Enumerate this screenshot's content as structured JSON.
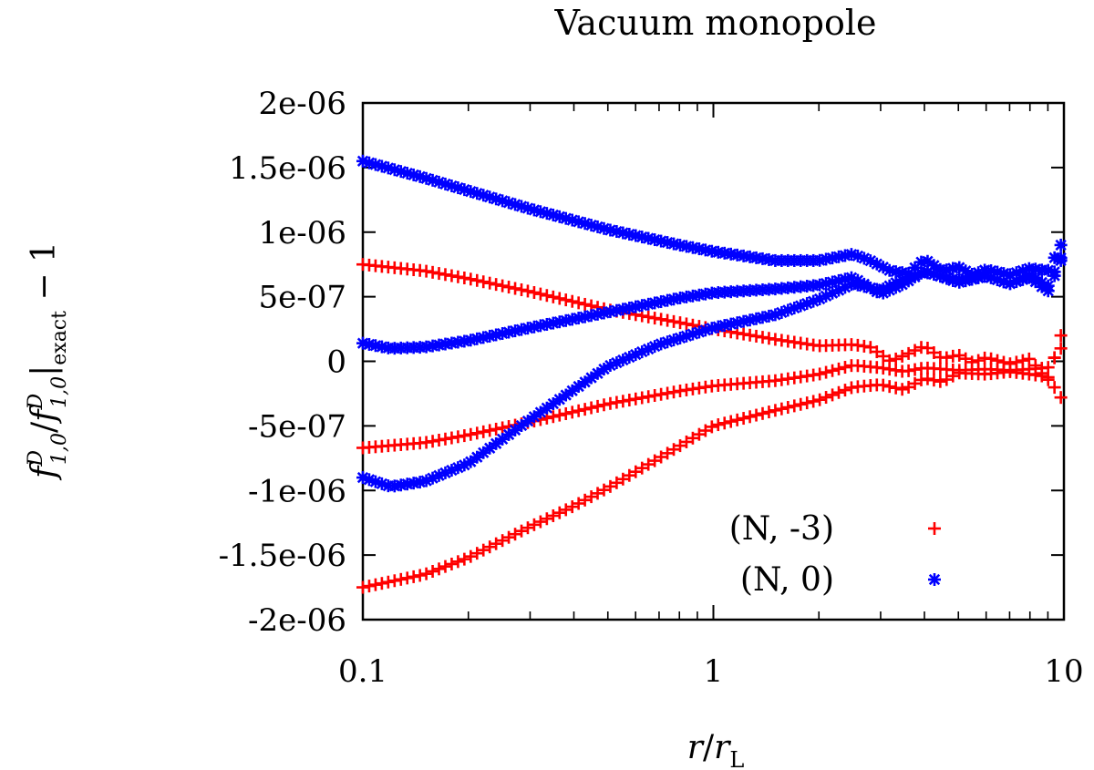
{
  "chart_data": {
    "type": "scatter",
    "title": "Vacuum monopole",
    "xlabel": "r/r_L",
    "ylabel": "f^D_{1,0}/f^D_{1,0}|_exact − 1",
    "xscale": "log",
    "xlim": [
      0.1,
      10
    ],
    "ylim": [
      -2e-06,
      2e-06
    ],
    "xticks": [
      {
        "value": 0.1,
        "label": "0.1"
      },
      {
        "value": 1,
        "label": "1"
      },
      {
        "value": 10,
        "label": "10"
      }
    ],
    "yticks": [
      {
        "value": 2e-06,
        "label": "2e-06"
      },
      {
        "value": 1.5e-06,
        "label": "1.5e-06"
      },
      {
        "value": 1e-06,
        "label": "1e-06"
      },
      {
        "value": 5e-07,
        "label": "5e-07"
      },
      {
        "value": 0,
        "label": "0"
      },
      {
        "value": -5e-07,
        "label": "-5e-07"
      },
      {
        "value": -1e-06,
        "label": "-1e-06"
      },
      {
        "value": -1.5e-06,
        "label": "-1.5e-06"
      },
      {
        "value": -2e-06,
        "label": "-2e-06"
      }
    ],
    "legend_position": "bottom-right",
    "series": [
      {
        "name": "(N, -3)",
        "marker": "plus",
        "color": "#ff0000",
        "curves": [
          {
            "x": [
              0.1,
              0.15,
              0.2,
              0.3,
              0.5,
              0.8,
              1,
              1.5,
              2,
              2.5,
              2.8,
              3.2,
              3.6,
              4,
              4.5,
              5,
              5.5,
              6,
              7,
              8,
              9,
              9.8
            ],
            "y": [
              7.5e-07,
              7e-07,
              6.4e-07,
              5.4e-07,
              4e-07,
              3e-07,
              2.5e-07,
              1.7e-07,
              1.2e-07,
              1.3e-07,
              1.1e-07,
              0,
              6e-08,
              1.2e-07,
              2e-08,
              5e-08,
              -1e-08,
              3e-08,
              -2e-08,
              2e-08,
              -1.5e-07,
              2e-07
            ]
          },
          {
            "x": [
              0.1,
              0.15,
              0.2,
              0.3,
              0.5,
              0.8,
              1,
              1.5,
              2,
              2.5,
              3,
              3.5,
              4,
              5,
              6,
              7,
              8,
              9,
              9.8
            ],
            "y": [
              -6.7e-07,
              -6.3e-07,
              -5.7e-07,
              -4.7e-07,
              -3.3e-07,
              -2.3e-07,
              -1.9e-07,
              -1.5e-07,
              -1e-07,
              -3e-08,
              -5e-08,
              -8e-08,
              -5e-08,
              -7e-08,
              -6e-08,
              -7e-08,
              -6e-08,
              -5e-08,
              1e-07
            ]
          },
          {
            "x": [
              0.1,
              0.15,
              0.2,
              0.3,
              0.4,
              0.5,
              0.7,
              1,
              1.5,
              2,
              2.5,
              3,
              3.5,
              4,
              4.5,
              5,
              6,
              7,
              8,
              9,
              9.8
            ],
            "y": [
              -1.75e-06,
              -1.65e-06,
              -1.52e-06,
              -1.28e-06,
              -1.12e-06,
              -9.8e-07,
              -7.5e-07,
              -5e-07,
              -3.8e-07,
              -3e-07,
              -2e-07,
              -1.8e-07,
              -2.2e-07,
              -1.3e-07,
              -1.6e-07,
              -9e-08,
              -1e-07,
              -8e-08,
              -1e-07,
              -1.2e-07,
              -2.8e-07
            ]
          }
        ]
      },
      {
        "name": "(N, 0)",
        "marker": "star",
        "color": "#0000ff",
        "curves": [
          {
            "x": [
              0.1,
              0.15,
              0.2,
              0.3,
              0.5,
              0.8,
              1,
              1.5,
              2,
              2.5,
              2.8,
              3.2,
              3.6,
              4,
              4.5,
              5,
              5.5,
              6,
              7,
              8,
              9,
              9.8
            ],
            "y": [
              1.55e-06,
              1.42e-06,
              1.32e-06,
              1.18e-06,
              1.02e-06,
              9e-07,
              8.5e-07,
              7.8e-07,
              7.8e-07,
              8.3e-07,
              7.8e-07,
              7e-07,
              6.8e-07,
              7.9e-07,
              7e-07,
              7.3e-07,
              6.7e-07,
              7.1e-07,
              6.7e-07,
              7.2e-07,
              7e-07,
              9e-07
            ]
          },
          {
            "x": [
              0.1,
              0.12,
              0.15,
              0.2,
              0.3,
              0.5,
              0.8,
              1,
              1.5,
              2,
              2.5,
              3,
              3.5,
              4,
              5,
              6,
              7,
              8,
              9,
              9.8
            ],
            "y": [
              1.4e-07,
              1e-07,
              1.1e-07,
              1.6e-07,
              2.6e-07,
              3.8e-07,
              4.9e-07,
              5.3e-07,
              5.6e-07,
              5.9e-07,
              6.5e-07,
              5.2e-07,
              6e-07,
              7e-07,
              6.1e-07,
              6.6e-07,
              6e-07,
              6.5e-07,
              5.4e-07,
              7.8e-07
            ]
          },
          {
            "x": [
              0.1,
              0.12,
              0.15,
              0.2,
              0.3,
              0.5,
              0.7,
              1,
              1.5,
              2,
              2.5,
              3,
              3.5,
              4,
              5,
              6,
              7,
              8,
              9,
              9.8
            ],
            "y": [
              -9e-07,
              -9.7e-07,
              -9.3e-07,
              -7.9e-07,
              -4.5e-07,
              -4e-08,
              1.3e-07,
              2.6e-07,
              3.6e-07,
              4.8e-07,
              6e-07,
              5.5e-07,
              6.4e-07,
              6.9e-07,
              6.3e-07,
              6.6e-07,
              6e-07,
              6.7e-07,
              5.8e-07,
              8e-07
            ]
          }
        ]
      }
    ]
  }
}
